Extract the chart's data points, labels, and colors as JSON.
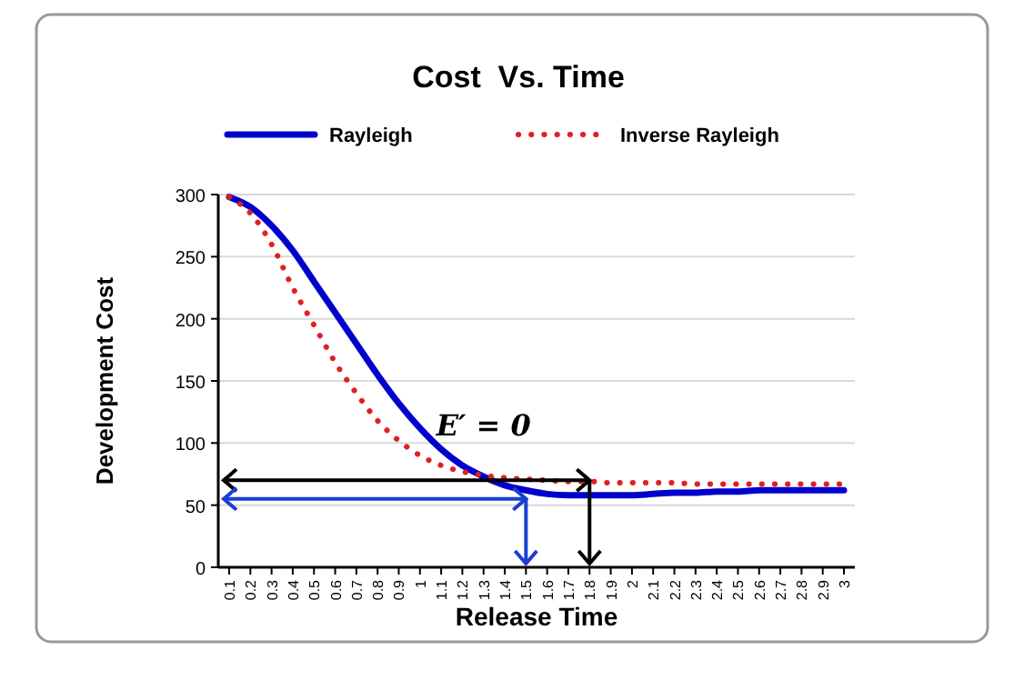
{
  "chart_data": {
    "type": "line",
    "title": "Cost  Vs. Time",
    "xlabel": "Release Time",
    "ylabel": "Development Cost",
    "categories": [
      "0.1",
      "0.2",
      "0.3",
      "0.4",
      "0.5",
      "0.6",
      "0.7",
      "0.8",
      "0.9",
      "1",
      "1.1",
      "1.2",
      "1.3",
      "1.4",
      "1.5",
      "1.6",
      "1.7",
      "1.8",
      "1.9",
      "2",
      "2.1",
      "2.2",
      "2.3",
      "2.4",
      "2.5",
      "2.6",
      "2.7",
      "2.8",
      "2.9",
      "3"
    ],
    "series": [
      {
        "name": "Rayleigh",
        "color": "#0000cc",
        "line_style": "solid",
        "values": [
          298,
          290,
          275,
          255,
          230,
          205,
          180,
          155,
          132,
          112,
          95,
          82,
          73,
          66,
          62,
          59,
          58,
          58,
          58,
          58,
          59,
          60,
          60,
          61,
          61,
          62,
          62,
          62,
          62,
          62
        ]
      },
      {
        "name": "Inverse Rayleigh",
        "color": "#e02020",
        "line_style": "dotted",
        "values": [
          298,
          285,
          260,
          225,
          195,
          165,
          140,
          118,
          102,
          90,
          82,
          77,
          74,
          72,
          71,
          70,
          69,
          69,
          68,
          68,
          68,
          68,
          67,
          67,
          67,
          67,
          67,
          67,
          67,
          67
        ]
      }
    ],
    "ylim": [
      0,
      300
    ],
    "yticks": [
      0,
      50,
      100,
      150,
      200,
      250,
      300
    ],
    "grid": "y",
    "legend": "top",
    "marker": "none",
    "ref_lines": [
      {
        "axis": "y",
        "value": 70,
        "color": "#000000"
      },
      {
        "axis": "x",
        "value": "1.8",
        "color": "#000000"
      },
      {
        "axis": "y",
        "value": 55,
        "color": "#1a3fd6"
      },
      {
        "axis": "x",
        "value": "1.5",
        "color": "#1a3fd6"
      }
    ],
    "annotations": [
      "E′ = 0"
    ]
  }
}
